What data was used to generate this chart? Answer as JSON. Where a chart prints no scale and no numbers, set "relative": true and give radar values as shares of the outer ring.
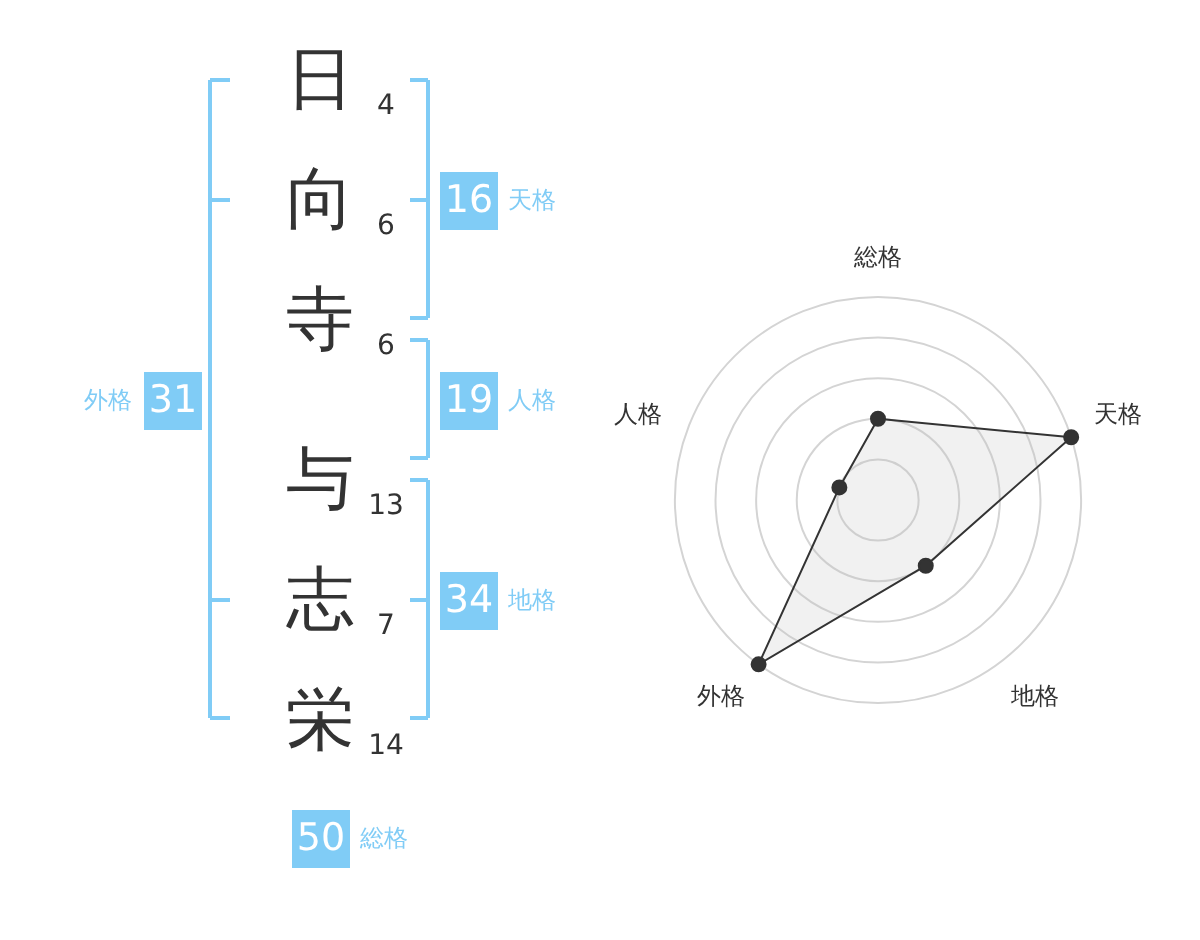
{
  "chart_data": [
    {
      "type": "other",
      "categories": [
        "日",
        "向",
        "寺",
        "与",
        "志",
        "栄"
      ],
      "values": [
        4,
        6,
        6,
        13,
        7,
        14
      ],
      "data_labels": true,
      "annotations": [
        "16",
        "天格",
        "19",
        "人格",
        "34",
        "地格",
        "外格",
        "31",
        "50",
        "総格"
      ]
    },
    {
      "type": "radar",
      "categories": [
        "総格",
        "天格",
        "地格",
        "外格",
        "人格"
      ],
      "relative": true,
      "grid": true,
      "marker": "circle",
      "series": [
        {
          "color": "#333333",
          "values": [
            0.4,
            1,
            0.4,
            1,
            0.2
          ]
        }
      ]
    }
  ]
}
